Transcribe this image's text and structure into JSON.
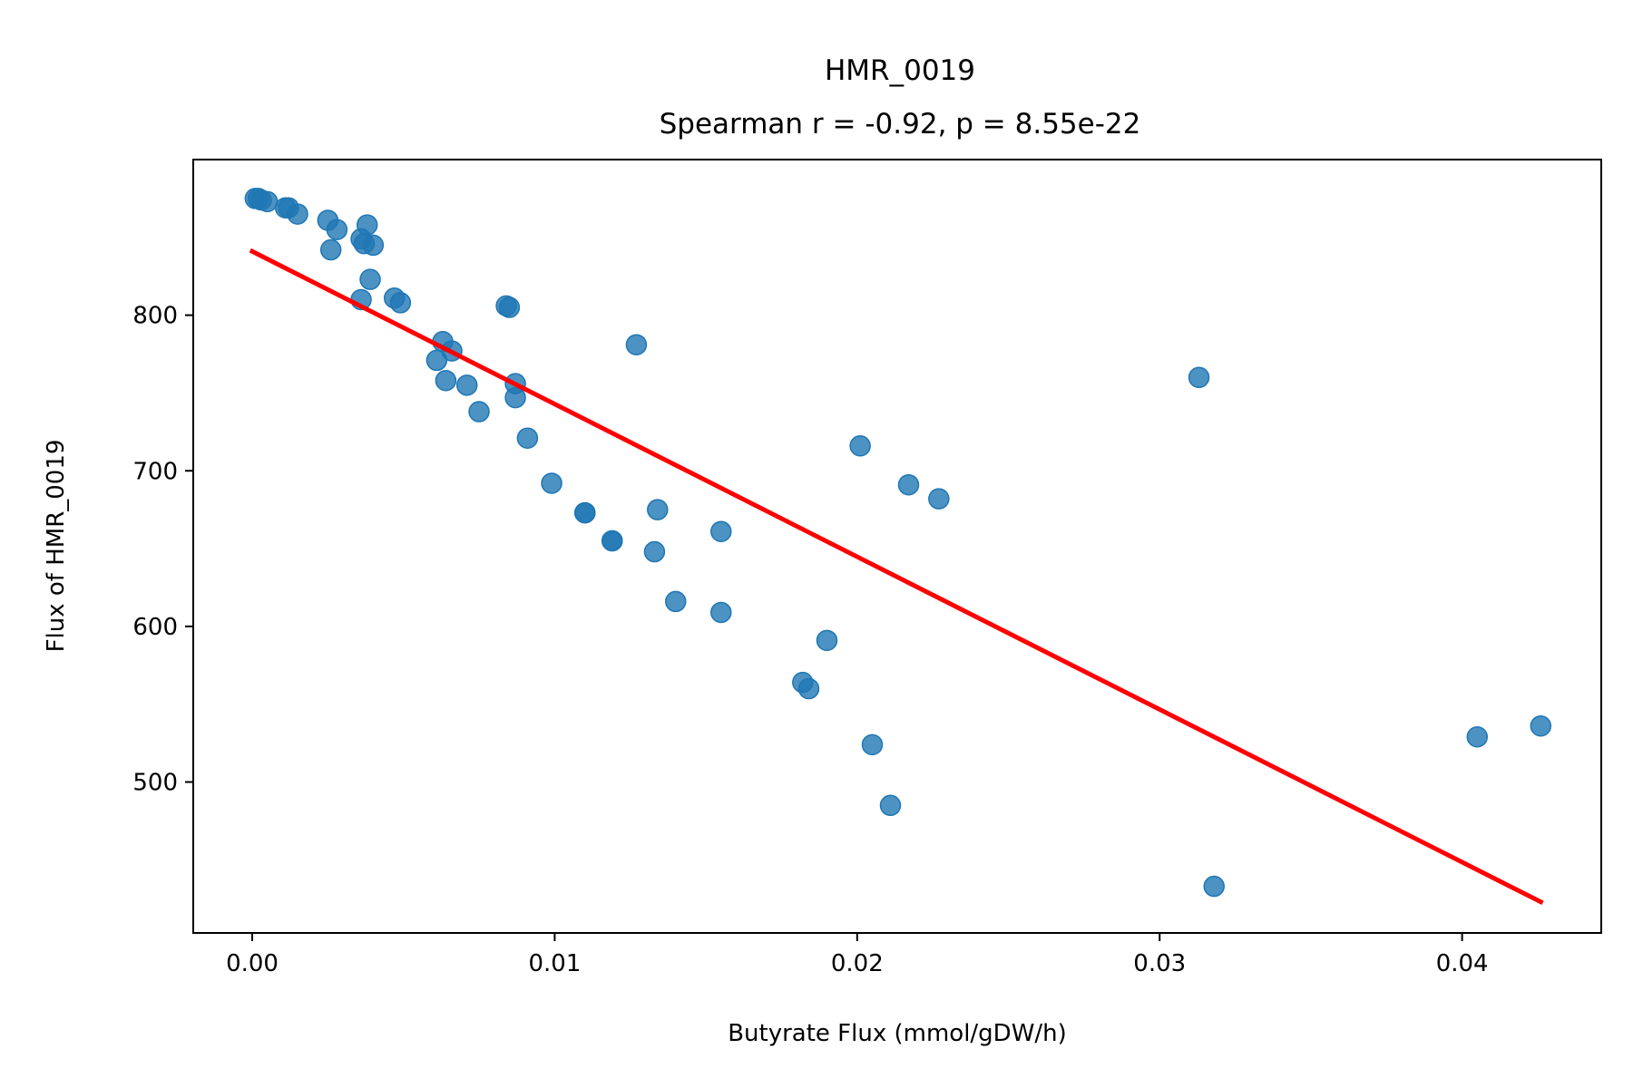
{
  "chart_data": {
    "type": "scatter",
    "title": "HMR_0019",
    "subtitle": "Spearman r = -0.92, p = 8.55e-22",
    "xlabel": "Butyrate Flux (mmol/gDW/h)",
    "ylabel": "Flux of HMR_0019",
    "xlim": [
      -0.00195,
      0.0446
    ],
    "ylim": [
      403,
      900
    ],
    "xticks": [
      0.0,
      0.01,
      0.02,
      0.03,
      0.04
    ],
    "xtick_labels": [
      "0.00",
      "0.01",
      "0.02",
      "0.03",
      "0.04"
    ],
    "yticks": [
      500,
      600,
      700,
      800
    ],
    "ytick_labels": [
      "500",
      "600",
      "700",
      "800"
    ],
    "grid": false,
    "legend": "none",
    "colors": {
      "points": "#1f77b4",
      "fit_line": "#ff0000"
    },
    "series": [
      {
        "kind": "points",
        "x": [
          0.0001,
          0.0002,
          0.0003,
          0.0005,
          0.0011,
          0.0012,
          0.0015,
          0.0025,
          0.0028,
          0.0026,
          0.0038,
          0.0036,
          0.0037,
          0.004,
          0.0039,
          0.0047,
          0.0049,
          0.0036,
          0.0084,
          0.0085,
          0.0063,
          0.0066,
          0.0061,
          0.0064,
          0.0071,
          0.0075,
          0.0087,
          0.0087,
          0.0091,
          0.0099,
          0.011,
          0.011,
          0.0119,
          0.0119,
          0.0127,
          0.0133,
          0.0134,
          0.014,
          0.0155,
          0.0155,
          0.0182,
          0.0184,
          0.019,
          0.0201,
          0.0205,
          0.0211,
          0.0217,
          0.0227,
          0.0313,
          0.0318,
          0.0405,
          0.0426
        ],
        "y": [
          875,
          875,
          874,
          873,
          869,
          869,
          865,
          861,
          855,
          842,
          858,
          849,
          846,
          845,
          823,
          811,
          808,
          810,
          806,
          805,
          783,
          777,
          771,
          758,
          755,
          738,
          756,
          747,
          721,
          692,
          673,
          673,
          655,
          655,
          781,
          648,
          675,
          616,
          661,
          609,
          564,
          560,
          591,
          716,
          524,
          485,
          691,
          682,
          760,
          433,
          529,
          536
        ]
      },
      {
        "kind": "fit_line",
        "x": [
          0.0,
          0.0426
        ],
        "y": [
          841,
          423
        ]
      }
    ]
  }
}
